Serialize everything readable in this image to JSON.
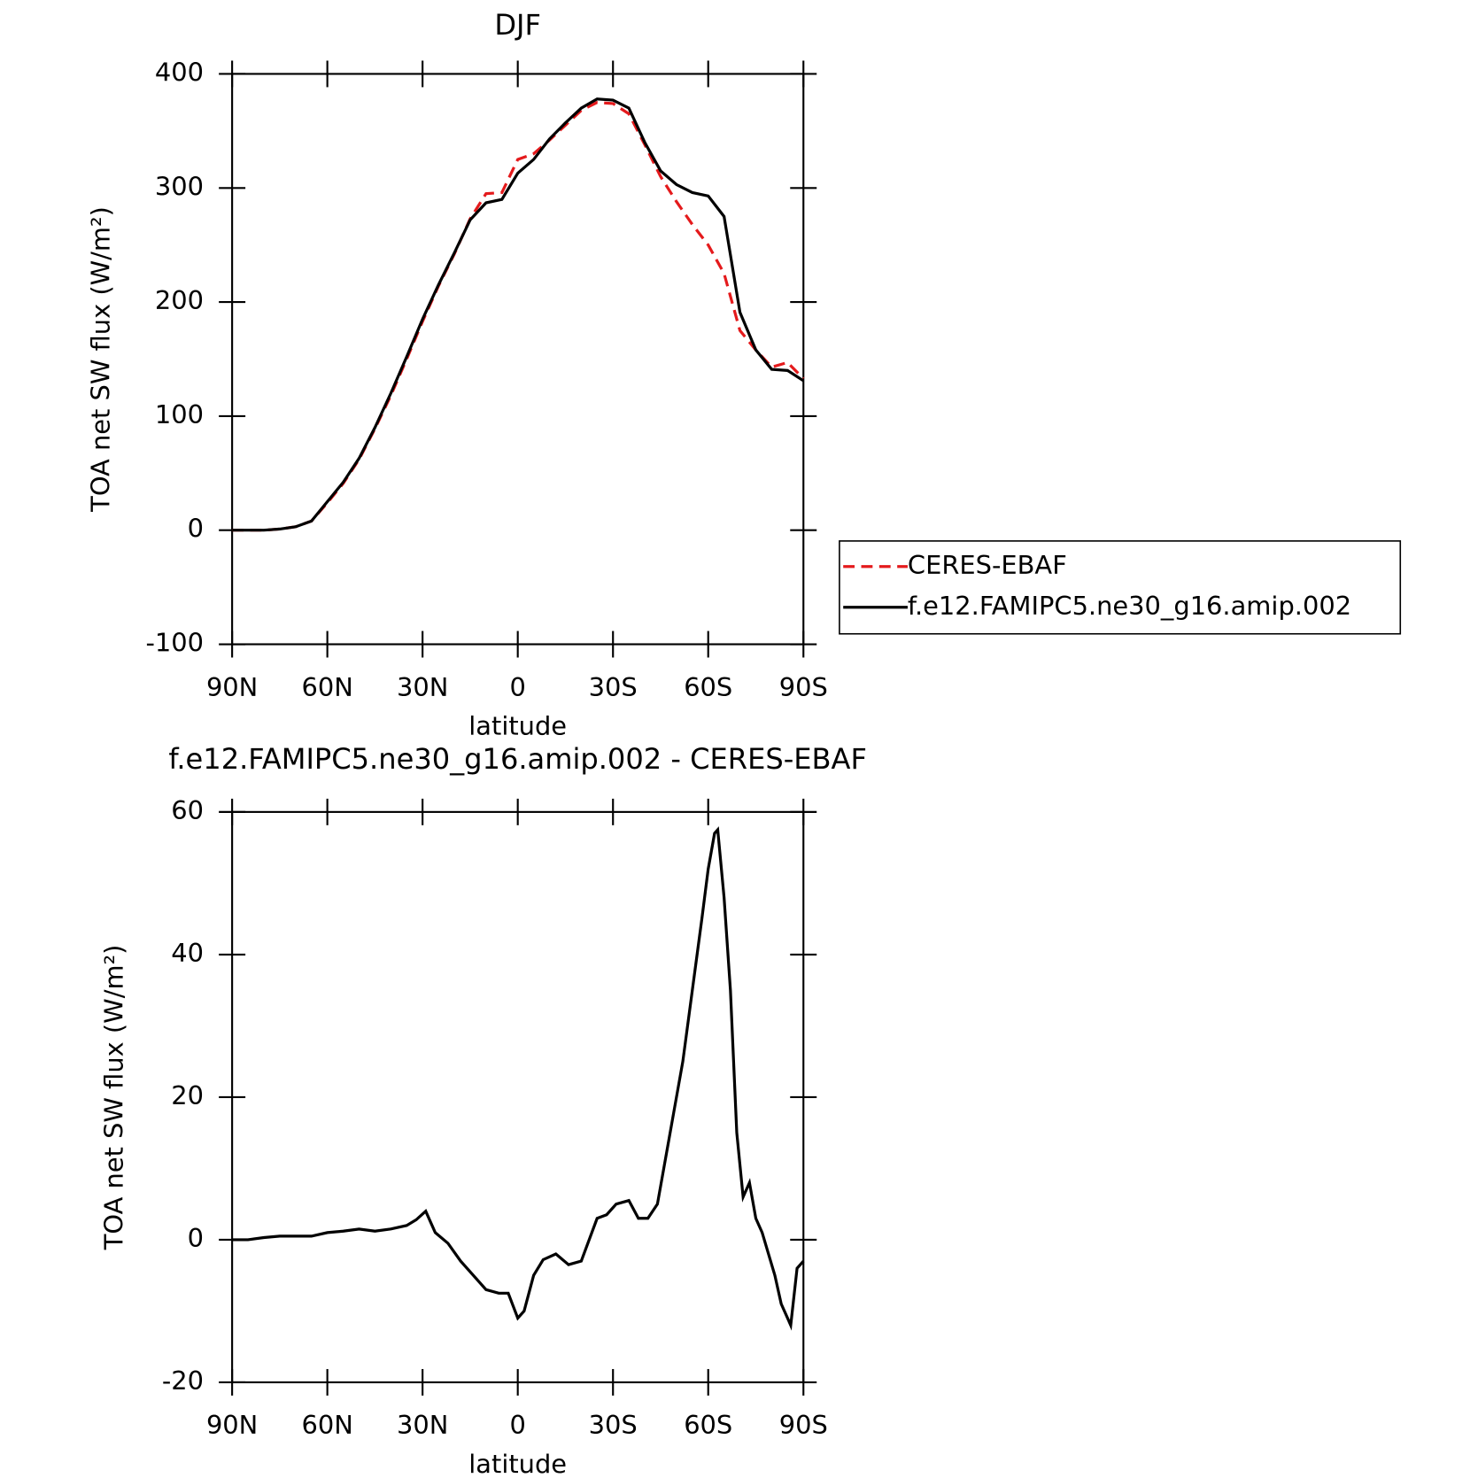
{
  "chart_data": [
    {
      "type": "line",
      "title": "DJF",
      "xlabel": "latitude",
      "ylabel": "TOA net SW flux (W/m²)",
      "x": [
        90,
        85,
        80,
        75,
        70,
        65,
        60,
        55,
        50,
        45,
        40,
        35,
        30,
        25,
        20,
        15,
        10,
        5,
        0,
        -5,
        -10,
        -15,
        -20,
        -25,
        -30,
        -35,
        -40,
        -45,
        -50,
        -55,
        -60,
        -65,
        -70,
        -75,
        -80,
        -85,
        -90
      ],
      "series": [
        {
          "name": "CERES-EBAF",
          "color": "#e41a1c",
          "dashed": true,
          "values": [
            0,
            0,
            0,
            1,
            3,
            8,
            24,
            41,
            62,
            89,
            118,
            150,
            183,
            214,
            242,
            273,
            295,
            296,
            325,
            330,
            342,
            355,
            368,
            375,
            374,
            365,
            338,
            310,
            288,
            268,
            250,
            225,
            175,
            158,
            143,
            147,
            133
          ]
        },
        {
          "name": "f.e12.FAMIPC5.ne30_g16.amip.002",
          "color": "#000000",
          "dashed": false,
          "values": [
            0,
            0,
            0,
            1,
            3,
            8,
            25,
            42,
            63,
            90,
            120,
            152,
            185,
            215,
            243,
            272,
            287,
            290,
            313,
            325,
            343,
            357,
            370,
            378,
            377,
            370,
            340,
            315,
            303,
            296,
            293,
            275,
            191,
            158,
            141,
            140,
            131
          ]
        }
      ],
      "xlim": [
        90,
        -90
      ],
      "xticks": [
        {
          "value": 90,
          "label": "90N"
        },
        {
          "value": 60,
          "label": "60N"
        },
        {
          "value": 30,
          "label": "30N"
        },
        0,
        {
          "value": -30,
          "label": "30S"
        },
        {
          "value": -60,
          "label": "60S"
        },
        {
          "value": -90,
          "label": "90S"
        }
      ],
      "ylim": [
        -100,
        400
      ],
      "yticks": [
        -100,
        0,
        100,
        200,
        300,
        400
      ],
      "legend": "right"
    },
    {
      "type": "line",
      "title": "f.e12.FAMIPC5.ne30_g16.amip.002 - CERES-EBAF",
      "xlabel": "latitude",
      "ylabel": "TOA net SW flux (W/m²)",
      "x": [
        90,
        85,
        80,
        75,
        70,
        65,
        60,
        55,
        50,
        45,
        40,
        35,
        32,
        29,
        26,
        22,
        18,
        14,
        10,
        6,
        3,
        0,
        -2,
        -5,
        -8,
        -12,
        -16,
        -20,
        -25,
        -28,
        -31,
        -35,
        -38,
        -41,
        -44,
        -48,
        -52,
        -55,
        -58,
        -60,
        -62,
        -63,
        -65,
        -67,
        -69,
        -71,
        -73,
        -75,
        -77,
        -79,
        -81,
        -83,
        -86,
        -88,
        -90
      ],
      "values": [
        0,
        0,
        0.3,
        0.5,
        0.5,
        0.5,
        1,
        1.2,
        1.5,
        1.2,
        1.5,
        2,
        2.8,
        4,
        1,
        -0.5,
        -3,
        -5,
        -7,
        -7.5,
        -7.5,
        -11,
        -10,
        -5,
        -2.8,
        -2,
        -3.5,
        -3,
        3,
        3.5,
        5,
        5.5,
        3,
        3,
        5,
        15,
        25,
        35,
        45,
        52,
        57,
        57.5,
        48,
        35,
        15,
        6,
        8,
        3,
        1,
        -2,
        -5,
        -9,
        -12,
        -4,
        -3
      ],
      "color": "#000000",
      "xlim": [
        90,
        -90
      ],
      "xticks": [
        {
          "value": 90,
          "label": "90N"
        },
        {
          "value": 60,
          "label": "60N"
        },
        {
          "value": 30,
          "label": "30N"
        },
        0,
        {
          "value": -30,
          "label": "30S"
        },
        {
          "value": -60,
          "label": "60S"
        },
        {
          "value": -90,
          "label": "90S"
        }
      ],
      "ylim": [
        -20,
        60
      ],
      "yticks": [
        -20,
        0,
        20,
        40,
        60
      ]
    }
  ]
}
